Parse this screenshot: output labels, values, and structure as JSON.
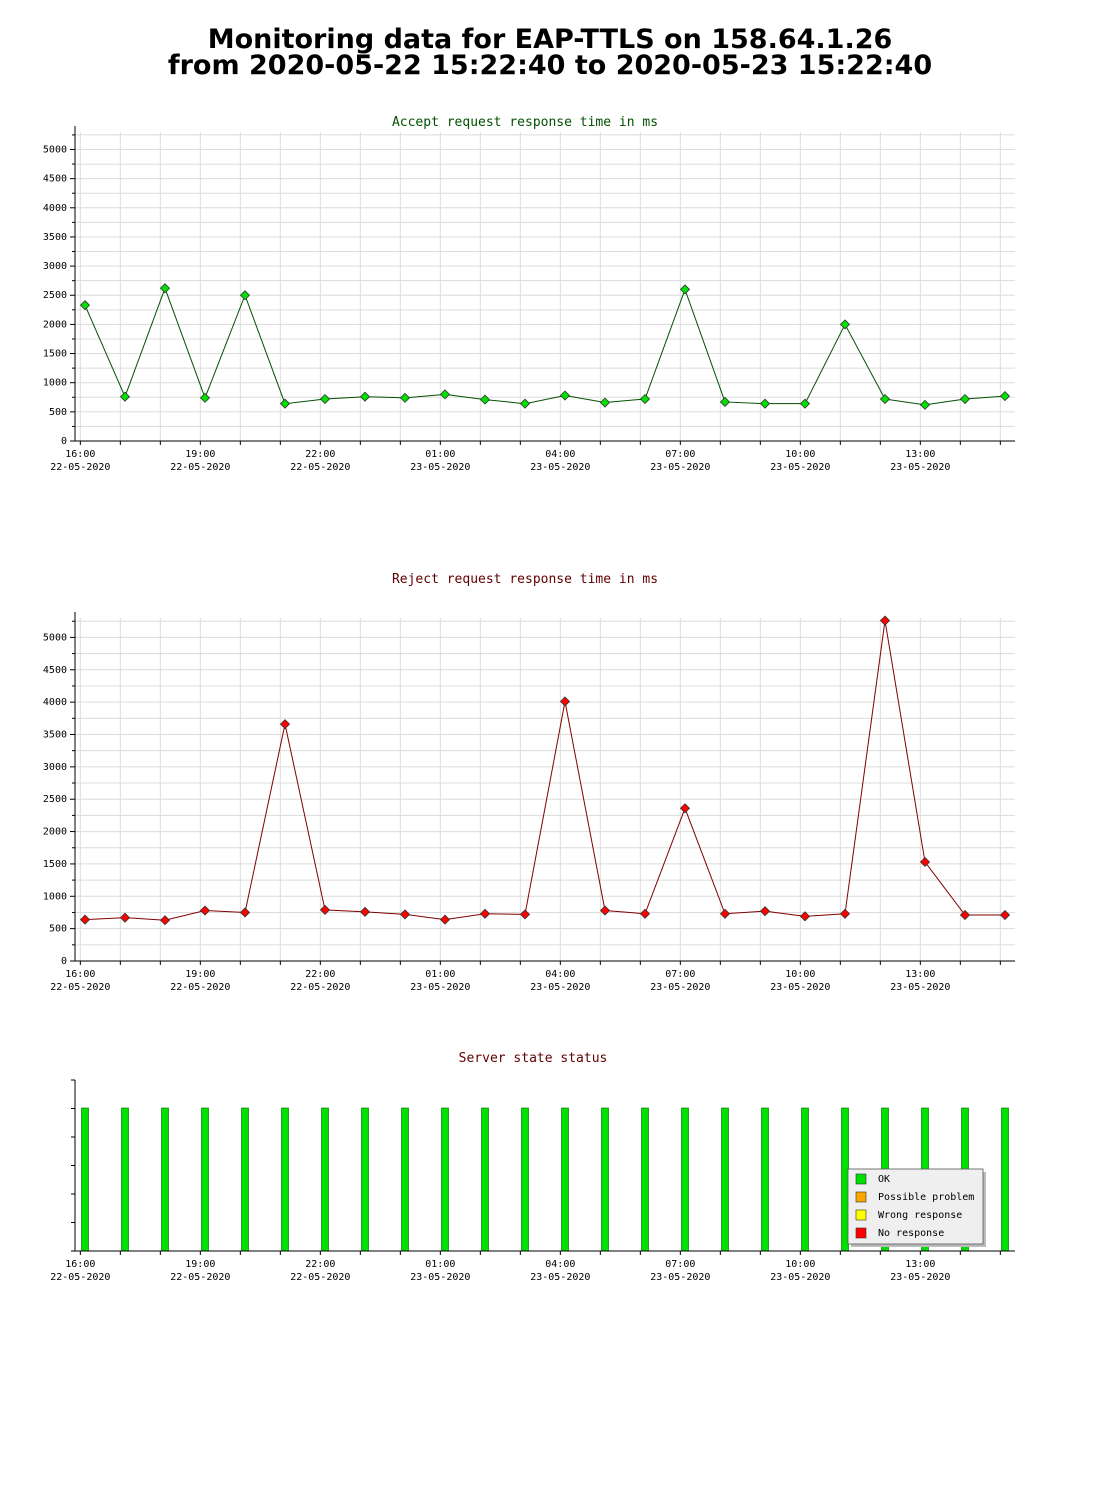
{
  "page": {
    "title_line1": "Monitoring data for EAP-TTLS on 158.64.1.26",
    "title_line2": "from 2020-05-22 15:22:40 to 2020-05-23 15:22:40"
  },
  "colors": {
    "accept_title": "#005000",
    "reject_title": "#600000",
    "status_title": "#600000",
    "accept_marker": "#00e000",
    "accept_line": "#005000",
    "reject_marker": "#ff0000",
    "reject_line": "#800000",
    "ok": "#00e000",
    "possible_problem": "#ffa500",
    "wrong_response": "#ffff00",
    "no_response": "#ff0000",
    "grid": "#dcdcdc"
  },
  "x_ticks": [
    {
      "time": "16:00",
      "date": "22-05-2020"
    },
    {
      "time": "19:00",
      "date": "22-05-2020"
    },
    {
      "time": "22:00",
      "date": "22-05-2020"
    },
    {
      "time": "01:00",
      "date": "23-05-2020"
    },
    {
      "time": "04:00",
      "date": "23-05-2020"
    },
    {
      "time": "07:00",
      "date": "23-05-2020"
    },
    {
      "time": "10:00",
      "date": "23-05-2020"
    },
    {
      "time": "13:00",
      "date": "23-05-2020"
    }
  ],
  "chart_data": [
    {
      "type": "line",
      "title": "Accept request response time in ms",
      "ylim": [
        0,
        5300
      ],
      "yticks": [
        0,
        500,
        1000,
        1500,
        2000,
        2500,
        3000,
        3500,
        4000,
        4500,
        5000
      ],
      "x_range": [
        "2020-05-22 15:52",
        "2020-05-23 15:22"
      ],
      "x": [
        "2020-05-22 16:07",
        "2020-05-22 17:07",
        "2020-05-22 18:07",
        "2020-05-22 19:07",
        "2020-05-22 20:07",
        "2020-05-22 21:07",
        "2020-05-22 22:07",
        "2020-05-22 23:07",
        "2020-05-23 00:07",
        "2020-05-23 01:07",
        "2020-05-23 02:07",
        "2020-05-23 03:07",
        "2020-05-23 04:07",
        "2020-05-23 05:07",
        "2020-05-23 06:07",
        "2020-05-23 07:07",
        "2020-05-23 08:07",
        "2020-05-23 09:07",
        "2020-05-23 10:07",
        "2020-05-23 11:07",
        "2020-05-23 12:07",
        "2020-05-23 13:07",
        "2020-05-23 14:07",
        "2020-05-23 15:07"
      ],
      "values": [
        2330,
        760,
        2620,
        740,
        2500,
        640,
        720,
        760,
        740,
        800,
        710,
        640,
        780,
        660,
        720,
        2600,
        670,
        640,
        640,
        2000,
        720,
        620,
        720,
        770
      ],
      "grid": true
    },
    {
      "type": "line",
      "title": "Reject request response time in ms",
      "ylim": [
        0,
        5300
      ],
      "yticks": [
        0,
        500,
        1000,
        1500,
        2000,
        2500,
        3000,
        3500,
        4000,
        4500,
        5000
      ],
      "x_range": [
        "2020-05-22 15:52",
        "2020-05-23 15:22"
      ],
      "x": [
        "2020-05-22 16:07",
        "2020-05-22 17:07",
        "2020-05-22 18:07",
        "2020-05-22 19:07",
        "2020-05-22 20:07",
        "2020-05-22 21:07",
        "2020-05-22 22:07",
        "2020-05-22 23:07",
        "2020-05-23 00:07",
        "2020-05-23 01:07",
        "2020-05-23 02:07",
        "2020-05-23 03:07",
        "2020-05-23 04:07",
        "2020-05-23 05:07",
        "2020-05-23 06:07",
        "2020-05-23 07:07",
        "2020-05-23 08:07",
        "2020-05-23 09:07",
        "2020-05-23 10:07",
        "2020-05-23 11:07",
        "2020-05-23 12:07",
        "2020-05-23 13:07",
        "2020-05-23 14:07",
        "2020-05-23 15:07"
      ],
      "values": [
        640,
        670,
        630,
        780,
        750,
        3660,
        790,
        760,
        720,
        640,
        730,
        720,
        4010,
        780,
        730,
        2360,
        730,
        770,
        690,
        730,
        5260,
        1530,
        710,
        710
      ],
      "grid": true
    },
    {
      "type": "bar",
      "title": "Server state status",
      "x_range": [
        "2020-05-22 15:52",
        "2020-05-23 15:22"
      ],
      "x": [
        "2020-05-22 16:07",
        "2020-05-22 17:07",
        "2020-05-22 18:07",
        "2020-05-22 19:07",
        "2020-05-22 20:07",
        "2020-05-22 21:07",
        "2020-05-22 22:07",
        "2020-05-22 23:07",
        "2020-05-23 00:07",
        "2020-05-23 01:07",
        "2020-05-23 02:07",
        "2020-05-23 03:07",
        "2020-05-23 04:07",
        "2020-05-23 05:07",
        "2020-05-23 06:07",
        "2020-05-23 07:07",
        "2020-05-23 08:07",
        "2020-05-23 09:07",
        "2020-05-23 10:07",
        "2020-05-23 11:07",
        "2020-05-23 12:07",
        "2020-05-23 13:07",
        "2020-05-23 14:07",
        "2020-05-23 15:07"
      ],
      "status": [
        "OK",
        "OK",
        "OK",
        "OK",
        "OK",
        "OK",
        "OK",
        "OK",
        "OK",
        "OK",
        "OK",
        "OK",
        "OK",
        "OK",
        "OK",
        "OK",
        "OK",
        "OK",
        "OK",
        "OK",
        "OK",
        "OK",
        "OK",
        "OK"
      ],
      "legend": [
        "OK",
        "Possible problem",
        "Wrong response",
        "No response"
      ],
      "legend_position": "bottom-right",
      "grid": false
    }
  ]
}
